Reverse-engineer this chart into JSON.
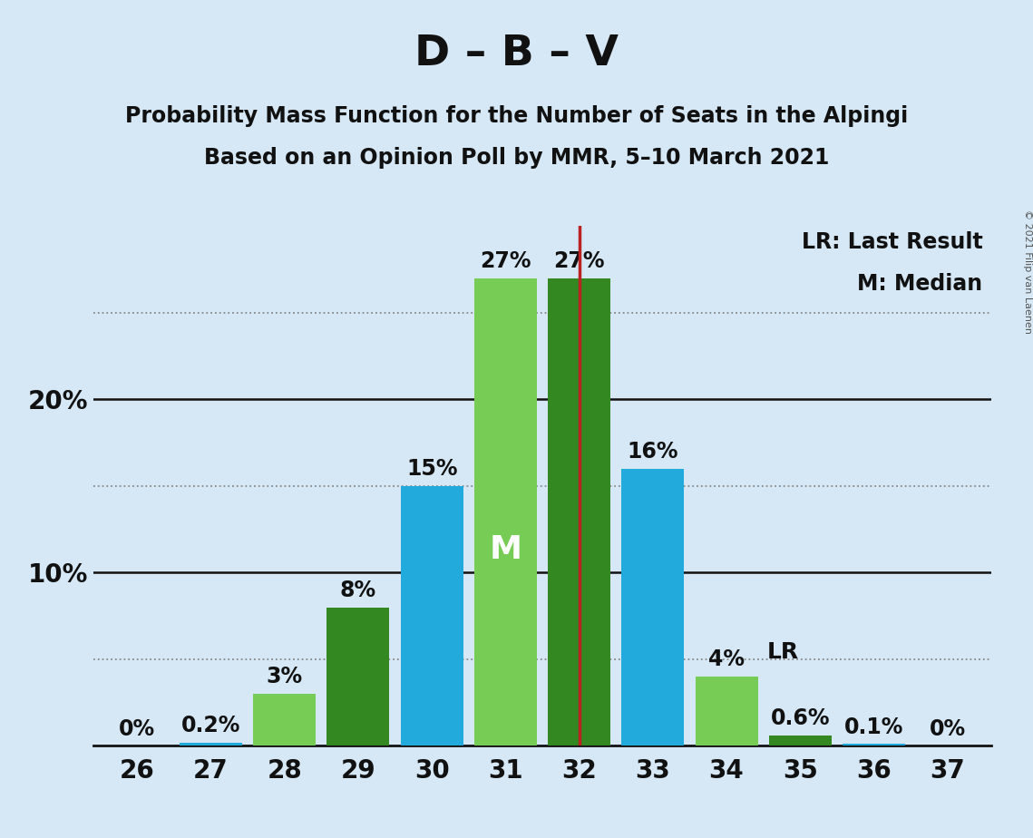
{
  "title": "D – B – V",
  "subtitle1": "Probability Mass Function for the Number of Seats in the Alpingi",
  "subtitle2": "Based on an Opinion Poll by MMR, 5–10 March 2021",
  "copyright": "© 2021 Filip van Laenen",
  "seats": [
    26,
    27,
    28,
    29,
    30,
    31,
    32,
    33,
    34,
    35,
    36,
    37
  ],
  "pmf_values": [
    0.0,
    0.2,
    3.0,
    8.0,
    15.0,
    27.0,
    27.0,
    16.0,
    4.0,
    0.6,
    0.1,
    0.0
  ],
  "labels": [
    "0%",
    "0.2%",
    "3%",
    "8%",
    "15%",
    "27%",
    "27%",
    "16%",
    "4%",
    "0.6%",
    "0.1%",
    "0%"
  ],
  "show_zero_labels": [
    true,
    false,
    false,
    false,
    false,
    false,
    false,
    false,
    false,
    false,
    false,
    true
  ],
  "median_seat": 31,
  "last_result_seat": 32,
  "color_map": {
    "26": "#22AADD",
    "27": "#22AADD",
    "28": "#77CC55",
    "29": "#338822",
    "30": "#22AADD",
    "31": "#77CC55",
    "32": "#338822",
    "33": "#22AADD",
    "34": "#77CC55",
    "35": "#338822",
    "36": "#22AADD",
    "37": "#22AADD"
  },
  "median_line_color": "#BB2222",
  "background_color": "#D6E8F5",
  "axis_line_color": "#111111",
  "dotted_line_color": "#888888",
  "solid_yticks": [
    10,
    20
  ],
  "dotted_yticks": [
    5,
    15,
    25
  ],
  "ylim": [
    0,
    30
  ],
  "title_fontsize": 34,
  "subtitle_fontsize": 17,
  "label_fontsize": 17,
  "tick_fontsize": 20,
  "legend_fontsize": 17,
  "M_fontsize": 26,
  "LR_label_fontsize": 18
}
